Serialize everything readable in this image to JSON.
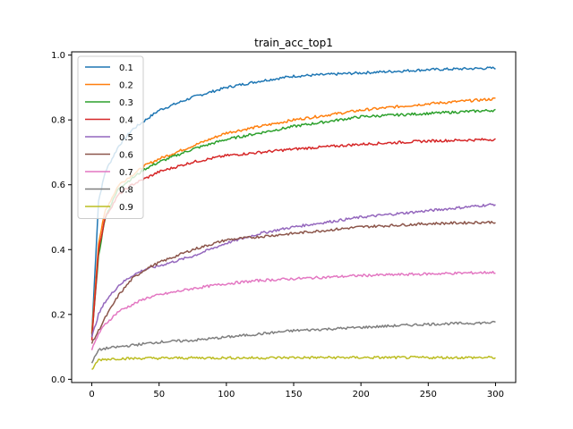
{
  "chart_data": {
    "type": "line",
    "title": "train_acc_top1",
    "xlabel": "",
    "ylabel": "",
    "xlim": [
      -15,
      315
    ],
    "ylim": [
      -0.01,
      1.01
    ],
    "x_ticks": [
      0,
      50,
      100,
      150,
      200,
      250,
      300
    ],
    "x_tick_labels": [
      "0",
      "50",
      "100",
      "150",
      "200",
      "250",
      "300"
    ],
    "y_ticks": [
      0.0,
      0.2,
      0.4,
      0.6,
      0.8,
      1.0
    ],
    "y_tick_labels": [
      "0.0",
      "0.2",
      "0.4",
      "0.6",
      "0.8",
      "1.0"
    ],
    "grid": false,
    "legend_position": "top-left",
    "x": [
      0,
      5,
      10,
      20,
      30,
      40,
      50,
      75,
      100,
      125,
      150,
      200,
      250,
      300
    ],
    "series": [
      {
        "name": "0.1",
        "color": "#1f77b4",
        "values": [
          0.14,
          0.55,
          0.64,
          0.72,
          0.77,
          0.8,
          0.83,
          0.87,
          0.9,
          0.92,
          0.935,
          0.945,
          0.955,
          0.96
        ]
      },
      {
        "name": "0.2",
        "color": "#ff7f0e",
        "values": [
          0.14,
          0.42,
          0.52,
          0.6,
          0.63,
          0.66,
          0.68,
          0.72,
          0.76,
          0.78,
          0.8,
          0.83,
          0.85,
          0.865
        ]
      },
      {
        "name": "0.3",
        "color": "#2ca02c",
        "values": [
          0.13,
          0.38,
          0.5,
          0.59,
          0.62,
          0.65,
          0.67,
          0.71,
          0.74,
          0.76,
          0.78,
          0.81,
          0.82,
          0.83
        ]
      },
      {
        "name": "0.4",
        "color": "#d62728",
        "values": [
          0.12,
          0.4,
          0.5,
          0.57,
          0.6,
          0.62,
          0.64,
          0.67,
          0.69,
          0.7,
          0.71,
          0.725,
          0.735,
          0.74
        ]
      },
      {
        "name": "0.5",
        "color": "#9467bd",
        "values": [
          0.13,
          0.2,
          0.24,
          0.29,
          0.32,
          0.34,
          0.35,
          0.38,
          0.42,
          0.45,
          0.47,
          0.5,
          0.52,
          0.54
        ]
      },
      {
        "name": "0.6",
        "color": "#8c564b",
        "values": [
          0.11,
          0.15,
          0.19,
          0.26,
          0.31,
          0.34,
          0.36,
          0.4,
          0.43,
          0.44,
          0.45,
          0.47,
          0.48,
          0.485
        ]
      },
      {
        "name": "0.7",
        "color": "#e377c2",
        "values": [
          0.09,
          0.14,
          0.17,
          0.21,
          0.23,
          0.25,
          0.26,
          0.28,
          0.295,
          0.305,
          0.31,
          0.32,
          0.325,
          0.33
        ]
      },
      {
        "name": "0.8",
        "color": "#7f7f7f",
        "values": [
          0.05,
          0.09,
          0.095,
          0.1,
          0.105,
          0.11,
          0.115,
          0.12,
          0.13,
          0.14,
          0.15,
          0.16,
          0.17,
          0.175
        ]
      },
      {
        "name": "0.9",
        "color": "#bcbd22",
        "values": [
          0.03,
          0.06,
          0.062,
          0.064,
          0.064,
          0.065,
          0.065,
          0.066,
          0.066,
          0.066,
          0.067,
          0.067,
          0.067,
          0.067
        ]
      }
    ]
  }
}
